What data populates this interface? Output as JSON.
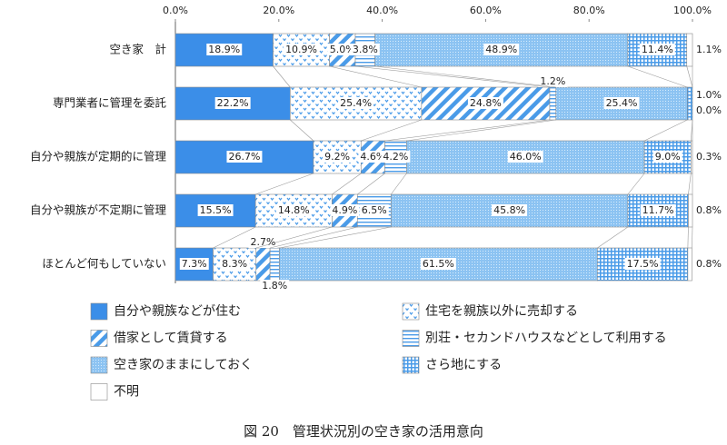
{
  "chart_data": {
    "type": "stacked-bar-horizontal",
    "title": "図 20　管理状況別の空き家の活用意向",
    "categories": [
      "空き家　計",
      "専門業者に管理を委託",
      "自分や親族が定期的に管理",
      "自分や親族が不定期に管理",
      "ほとんど何もしていない"
    ],
    "xlim": [
      0,
      100
    ],
    "xticks": [
      {
        "value": 0,
        "label": "0.0%"
      },
      {
        "value": 20,
        "label": "20.0%"
      },
      {
        "value": 40,
        "label": "40.0%"
      },
      {
        "value": 60,
        "label": "60.0%"
      },
      {
        "value": 80,
        "label": "80.0%"
      },
      {
        "value": 100,
        "label": "100.0%"
      }
    ],
    "series": [
      {
        "name": "自分や親族などが住む",
        "color": "#3b8ee8",
        "values": [
          18.9,
          22.2,
          26.7,
          15.5,
          7.3
        ],
        "value_labels": [
          "18.9%",
          "22.2%",
          "26.7%",
          "15.5%",
          "7.3%"
        ]
      },
      {
        "name": "住宅を親族以外に売却する",
        "color": "#4a9be8",
        "pattern": "dots",
        "values": [
          10.9,
          25.4,
          9.2,
          14.8,
          8.3
        ],
        "value_labels": [
          "10.9%",
          "25.4%",
          "9.2%",
          "14.8%",
          "8.3%"
        ]
      },
      {
        "name": "借家として賃貸する",
        "color": "#4a9be8",
        "pattern": "diagonal",
        "values": [
          5.0,
          24.8,
          4.6,
          4.9,
          2.7
        ],
        "value_labels": [
          "5.0%",
          "24.8%",
          "4.6%",
          "4.9%",
          "2.7%"
        ]
      },
      {
        "name": "別荘・セカンドハウスなどとして利用する",
        "color": "#4a9be8",
        "pattern": "horizontal",
        "values": [
          3.8,
          1.2,
          4.2,
          6.5,
          1.8
        ],
        "value_labels": [
          "3.8%",
          "1.2%",
          "4.2%",
          "6.5%",
          "1.8%"
        ]
      },
      {
        "name": "空き家のままにしておく",
        "color": "#9fcdf4",
        "pattern": "fine",
        "values": [
          48.9,
          25.4,
          46.0,
          45.8,
          61.5
        ],
        "value_labels": [
          "48.9%",
          "25.4%",
          "46.0%",
          "45.8%",
          "61.5%"
        ]
      },
      {
        "name": "さら地にする",
        "color": "#4a9be8",
        "pattern": "grid",
        "values": [
          11.4,
          1.0,
          9.0,
          11.7,
          17.5
        ],
        "value_labels": [
          "11.4%",
          "1.0%",
          "9.0%",
          "11.7%",
          "17.5%"
        ]
      },
      {
        "name": "不明",
        "color": "#ffffff",
        "values": [
          1.1,
          0.0,
          0.3,
          0.8,
          0.8
        ],
        "value_labels": [
          "1.1%",
          "0.0%",
          "0.3%",
          "0.8%",
          "0.8%"
        ]
      }
    ]
  }
}
